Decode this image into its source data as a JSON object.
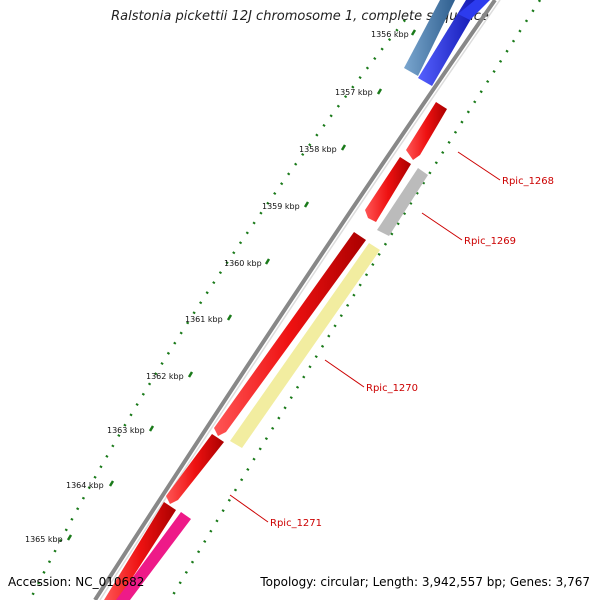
{
  "title": "Ralstonia pickettii 12J chromosome 1, complete sequence",
  "footer": {
    "accession": "Accession: NC_010682",
    "summary": "Topology: circular; Length: 3,942,557 bp; Genes: 3,767"
  },
  "ticks": [
    {
      "label": "1356 kbp",
      "kbp": 1356
    },
    {
      "label": "1357 kbp",
      "kbp": 1357
    },
    {
      "label": "1358 kbp",
      "kbp": 1358
    },
    {
      "label": "1359 kbp",
      "kbp": 1359
    },
    {
      "label": "1360 kbp",
      "kbp": 1360
    },
    {
      "label": "1361 kbp",
      "kbp": 1361
    },
    {
      "label": "1362 kbp",
      "kbp": 1362
    },
    {
      "label": "1363 kbp",
      "kbp": 1363
    },
    {
      "label": "1364 kbp",
      "kbp": 1364
    },
    {
      "label": "1365 kbp",
      "kbp": 1365
    }
  ],
  "gene_labels": [
    {
      "name": "Rpic_1268"
    },
    {
      "name": "Rpic_1269"
    },
    {
      "name": "Rpic_1270"
    },
    {
      "name": "Rpic_1271"
    }
  ],
  "colors": {
    "cds_red": "#ee1111",
    "grey_feature": "#bbbbbb",
    "yellow_feature": "#f2eda0",
    "blue_feature": "#1a22dd",
    "steelblue_feature": "#4a7fb0",
    "pink_feature": "#ee1a88",
    "backbone": "#888888",
    "tick_dots": "#1a7a1a",
    "label_red": "#cc0000"
  }
}
